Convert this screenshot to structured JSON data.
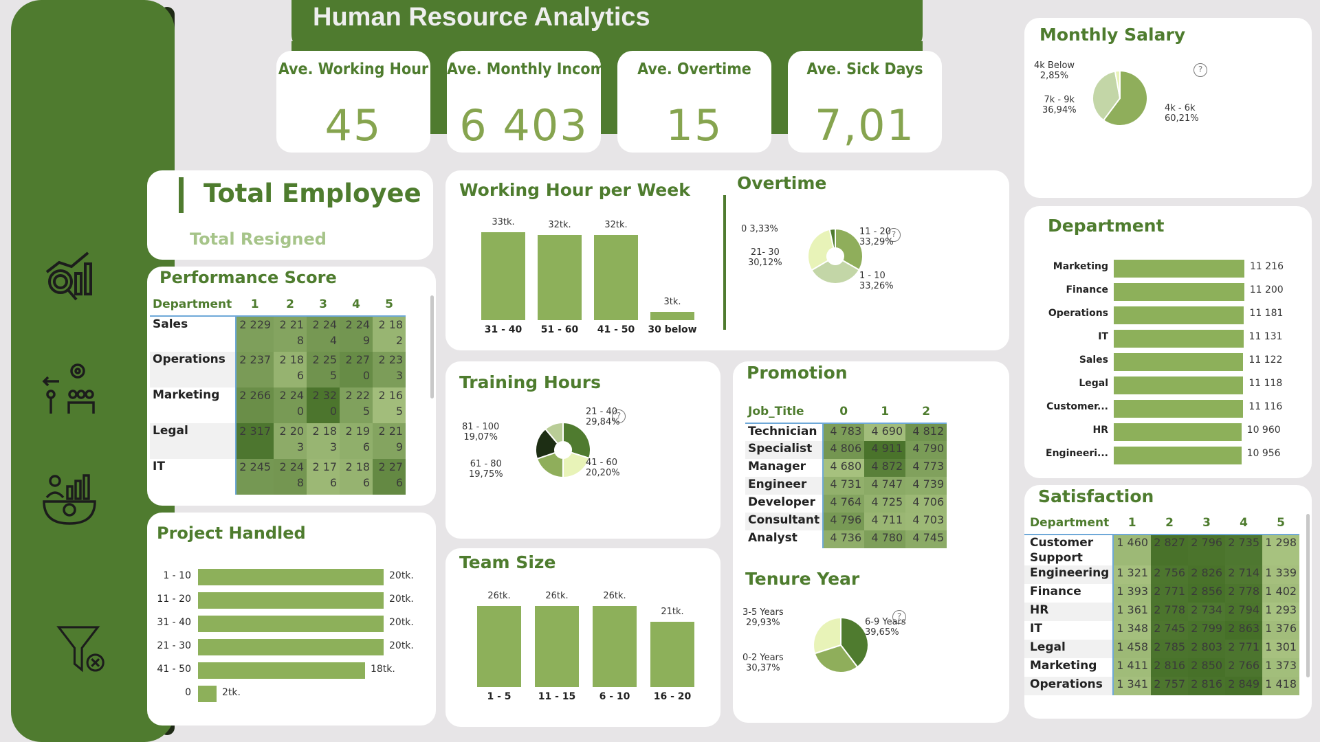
{
  "header": {
    "title": "Human Resource Analytics"
  },
  "sidebar": {
    "items": [
      {
        "icon": "analytics-search-icon"
      },
      {
        "icon": "people-settings-icon"
      },
      {
        "icon": "growth-gear-icon"
      },
      {
        "icon": "clear-filter-icon"
      }
    ]
  },
  "kpis": [
    {
      "label": "Ave. Working Hour",
      "value": "45"
    },
    {
      "label": "Ave. Monthly Income",
      "value": "6 403"
    },
    {
      "label": "Ave. Overtime",
      "value": "15"
    },
    {
      "label": "Ave. Sick Days",
      "value": "7,01"
    }
  ],
  "total_employee": {
    "title": "Total Employee",
    "subtitle": "Total Resigned"
  },
  "performance_score": {
    "title": "Performance Score",
    "corner": "Department",
    "columns": [
      "1",
      "2",
      "3",
      "4",
      "5"
    ],
    "rows": [
      {
        "label": "Sales",
        "cells": [
          "2 229",
          "2 21\n8",
          "2 24\n4",
          "2 24\n9",
          "2 18\n2"
        ]
      },
      {
        "label": "Operations",
        "cells": [
          "2 237",
          "2 18\n6",
          "2 25\n5",
          "2 27\n0",
          "2 23\n3"
        ]
      },
      {
        "label": "Marketing",
        "cells": [
          "2 266",
          "2 24\n0",
          "2 32\n0",
          "2 22\n5",
          "2 16\n5"
        ]
      },
      {
        "label": "Legal",
        "cells": [
          "2 317",
          "2 20\n3",
          "2 18\n3",
          "2 19\n6",
          "2 21\n9"
        ]
      },
      {
        "label": "IT",
        "cells": [
          "2 245",
          "2 24\n8",
          "2 17\n6",
          "2 18\n6",
          "2 27\n6"
        ]
      }
    ]
  },
  "project_handled": {
    "title": "Project Handled",
    "categories": [
      "1 - 10",
      "11 - 20",
      "31 - 40",
      "21 - 30",
      "41 - 50",
      "0"
    ],
    "labels": [
      "20tk.",
      "20tk.",
      "20tk.",
      "20tk.",
      "18tk.",
      "2tk."
    ],
    "values": [
      20,
      20,
      20,
      20,
      18,
      2
    ]
  },
  "working_hour": {
    "title": "Working Hour per Week",
    "categories": [
      "31 - 40",
      "51 - 60",
      "41 - 50",
      "30 below"
    ],
    "labels": [
      "33tk.",
      "32tk.",
      "32tk.",
      "3tk."
    ],
    "values": [
      33,
      32,
      32,
      3
    ]
  },
  "overtime": {
    "title": "Overtime",
    "slices": [
      {
        "label": "11 - 20",
        "pct": "33,29%",
        "value": 33.29,
        "color": "#8fae5b"
      },
      {
        "label": "1 - 10",
        "pct": "33,26%",
        "value": 33.26,
        "color": "#c3d6a7"
      },
      {
        "label": "21- 30",
        "pct": "30,12%",
        "value": 30.12,
        "color": "#e8f3b8"
      },
      {
        "label": "0",
        "pct": "3,33%",
        "value": 3.33,
        "color": "#4f7b2f"
      }
    ]
  },
  "training_hours": {
    "title": "Training Hours",
    "slices": [
      {
        "label": "21 - 40",
        "pct": "29,84%",
        "value": 29.84,
        "color": "#4f7b2f"
      },
      {
        "label": "41 - 60",
        "pct": "20,20%",
        "value": 20.2,
        "color": "#e8f3b8"
      },
      {
        "label": "61 - 80",
        "pct": "19,75%",
        "value": 19.75,
        "color": "#8fae5b"
      },
      {
        "label": "81 - 100",
        "pct": "19,07%",
        "value": 19.07,
        "color": "#1d2e14"
      },
      {
        "label": "",
        "pct": "",
        "value": 11.14,
        "color": "#b9cd97"
      }
    ]
  },
  "team_size": {
    "title": "Team Size",
    "categories": [
      "1 - 5",
      "11 - 15",
      "6 - 10",
      "16 - 20"
    ],
    "labels": [
      "26tk.",
      "26tk.",
      "26tk.",
      "21tk."
    ],
    "values": [
      26,
      26,
      26,
      21
    ]
  },
  "promotion": {
    "title": "Promotion",
    "corner": "Job_Title",
    "columns": [
      "0",
      "1",
      "2"
    ],
    "rows": [
      {
        "label": "Technician",
        "cells": [
          "4 783",
          "4 690",
          "4 812"
        ]
      },
      {
        "label": "Specialist",
        "cells": [
          "4 806",
          "4 911",
          "4 790"
        ]
      },
      {
        "label": "Manager",
        "cells": [
          "4 680",
          "4 872",
          "4 773"
        ]
      },
      {
        "label": "Engineer",
        "cells": [
          "4 731",
          "4 747",
          "4 739"
        ]
      },
      {
        "label": "Developer",
        "cells": [
          "4 764",
          "4 725",
          "4 706"
        ]
      },
      {
        "label": "Consultant",
        "cells": [
          "4 796",
          "4 711",
          "4 703"
        ]
      },
      {
        "label": "Analyst",
        "cells": [
          "4 736",
          "4 780",
          "4 745"
        ]
      }
    ]
  },
  "tenure": {
    "title": "Tenure Year",
    "slices": [
      {
        "label": "6-9 Years",
        "pct": "39,65%",
        "value": 39.65,
        "color": "#4f7b2f"
      },
      {
        "label": "0-2 Years",
        "pct": "30,37%",
        "value": 30.37,
        "color": "#8fae5b"
      },
      {
        "label": "3-5 Years",
        "pct": "29,93%",
        "value": 29.93,
        "color": "#e8f3b8"
      }
    ]
  },
  "monthly_salary": {
    "title": "Monthly Salary",
    "slices": [
      {
        "label": "4k - 6k",
        "pct": "60,21%",
        "value": 60.21,
        "color": "#8fae5b"
      },
      {
        "label": "7k - 9k",
        "pct": "36,94%",
        "value": 36.94,
        "color": "#c3d6a7"
      },
      {
        "label": "4k Below",
        "pct": "2,85%",
        "value": 2.85,
        "color": "#e8f3b8"
      }
    ]
  },
  "department": {
    "title": "Department",
    "categories": [
      "Marketing",
      "Finance",
      "Operations",
      "IT",
      "Sales",
      "Legal",
      "Customer...",
      "HR",
      "Engineeri..."
    ],
    "labels": [
      "11 216",
      "11 200",
      "11 181",
      "11 131",
      "11 122",
      "11 118",
      "11 116",
      "10 960",
      "10 956"
    ],
    "values": [
      11216,
      11200,
      11181,
      11131,
      11122,
      11118,
      11116,
      10960,
      10956
    ]
  },
  "satisfaction": {
    "title": "Satisfaction",
    "corner": "Department",
    "columns": [
      "1",
      "2",
      "3",
      "4",
      "5"
    ],
    "rows": [
      {
        "label": "Customer\nSupport",
        "cells": [
          "1 460",
          "2 827",
          "2 796",
          "2 735",
          "1 298"
        ]
      },
      {
        "label": "Engineering",
        "cells": [
          "1 321",
          "2 756",
          "2 826",
          "2 714",
          "1 339"
        ]
      },
      {
        "label": "Finance",
        "cells": [
          "1 393",
          "2 771",
          "2 856",
          "2 778",
          "1 402"
        ]
      },
      {
        "label": "HR",
        "cells": [
          "1 361",
          "2 778",
          "2 734",
          "2 794",
          "1 293"
        ]
      },
      {
        "label": "IT",
        "cells": [
          "1 348",
          "2 745",
          "2 799",
          "2 863",
          "1 376"
        ]
      },
      {
        "label": "Legal",
        "cells": [
          "1 458",
          "2 785",
          "2 803",
          "2 771",
          "1 301"
        ]
      },
      {
        "label": "Marketing",
        "cells": [
          "1 411",
          "2 816",
          "2 850",
          "2 766",
          "1 373"
        ]
      },
      {
        "label": "Operations",
        "cells": [
          "1 341",
          "2 757",
          "2 816",
          "2 849",
          "1 418"
        ]
      }
    ]
  },
  "colors": {
    "primary": "#4f7b2f",
    "bar": "#8db05a",
    "title": "#4e7c2e",
    "bg": "#e7e5e7"
  }
}
